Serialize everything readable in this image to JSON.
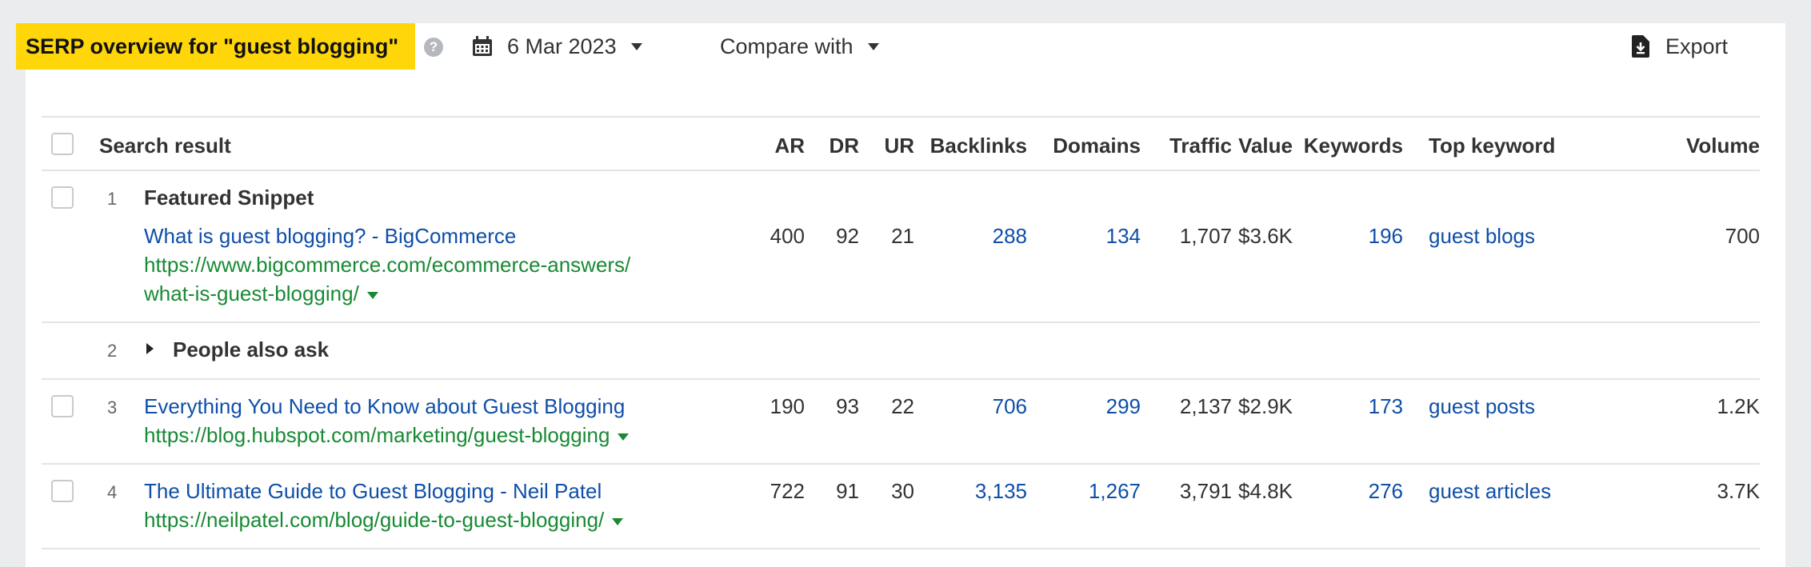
{
  "header": {
    "title": "SERP overview for \"guest blogging\"",
    "help": "?",
    "date": "6 Mar 2023",
    "compare": "Compare with",
    "export": "Export"
  },
  "columns": {
    "search_result": "Search result",
    "ar": "AR",
    "dr": "DR",
    "ur": "UR",
    "backlinks": "Backlinks",
    "domains": "Domains",
    "traffic": "Traffic",
    "value": "Value",
    "keywords": "Keywords",
    "top_keyword": "Top keyword",
    "volume": "Volume"
  },
  "rows": [
    {
      "pos": "1",
      "label": "Featured Snippet",
      "title": "What is guest blogging? - BigCommerce",
      "url_line1": "https://www.bigcommerce.com/ecommerce-answers/",
      "url_line2": "what-is-guest-blogging/",
      "ar": "400",
      "dr": "92",
      "ur": "21",
      "backlinks": "288",
      "domains": "134",
      "traffic": "1,707",
      "value": "$3.6K",
      "keywords": "196",
      "top_keyword": "guest blogs",
      "volume": "700"
    },
    {
      "pos": "2",
      "label": "People also ask"
    },
    {
      "pos": "3",
      "title": "Everything You Need to Know about Guest Blogging",
      "url_line1": "https://blog.hubspot.com/marketing/guest-blogging",
      "ar": "190",
      "dr": "93",
      "ur": "22",
      "backlinks": "706",
      "domains": "299",
      "traffic": "2,137",
      "value": "$2.9K",
      "keywords": "173",
      "top_keyword": "guest posts",
      "volume": "1.2K"
    },
    {
      "pos": "4",
      "title": "The Ultimate Guide to Guest Blogging - Neil Patel",
      "url_line1": "https://neilpatel.com/blog/guide-to-guest-blogging/",
      "ar": "722",
      "dr": "91",
      "ur": "30",
      "backlinks": "3,135",
      "domains": "1,267",
      "traffic": "3,791",
      "value": "$4.8K",
      "keywords": "276",
      "top_keyword": "guest articles",
      "volume": "3.7K"
    }
  ],
  "icons": {
    "calendar": "calendar-icon",
    "export": "export-file-icon",
    "help": "help-icon"
  },
  "colors": {
    "highlight": "#ffd60a",
    "link": "#0f4fa8",
    "url": "#188a34"
  }
}
